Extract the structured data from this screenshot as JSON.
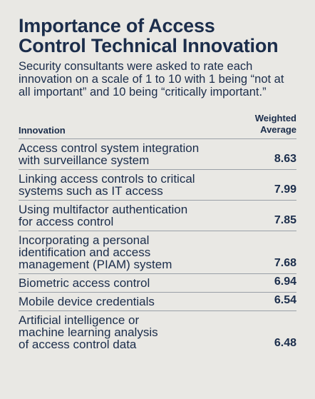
{
  "title": "Importance of Access Control Technical Innovation",
  "subtitle": "Security consultants were asked to rate each innovation on a scale of 1 to 10 with 1 being “not at all important” and 10 being “critically important.”",
  "chart_data": {
    "type": "table",
    "title": "Importance of Access Control Technical Innovation",
    "columns": [
      "Innovation",
      "Weighted Average"
    ],
    "rows": [
      {
        "label": "Access control system integration with surveillance system",
        "value": "8.63"
      },
      {
        "label": "Linking access controls to critical systems such as IT access",
        "value": "7.99"
      },
      {
        "label": "Using multifactor authentication for access control",
        "value": "7.85"
      },
      {
        "label": "Incorporating a personal identification and access management (PIAM) system",
        "value": "7.68"
      },
      {
        "label": "Biometric access control",
        "value": "6.94"
      },
      {
        "label": "Mobile device credentials",
        "value": "6.54"
      },
      {
        "label": "Artificial intelligence or machine learning analysis of access control data",
        "value": "6.48"
      }
    ]
  }
}
